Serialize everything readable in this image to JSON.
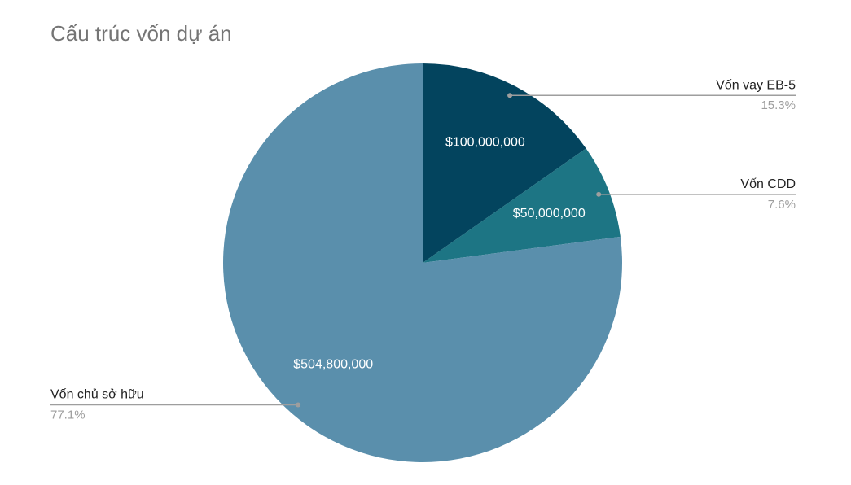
{
  "chart_data": {
    "type": "pie",
    "title": "Cấu trúc vốn dự án",
    "categories": [
      "Vốn vay EB-5",
      "Vốn CDD",
      "Vốn chủ sở hữu"
    ],
    "values": [
      100000000,
      50000000,
      504800000
    ],
    "value_labels": [
      "$100,000,000",
      "$50,000,000",
      "$504,800,000"
    ],
    "percent_labels": [
      "15.3%",
      "7.6%",
      "77.1%"
    ],
    "colors": [
      "#03445e",
      "#1d7584",
      "#5a8fac"
    ]
  }
}
